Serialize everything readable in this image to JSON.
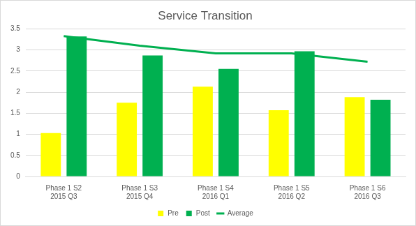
{
  "chart_data": {
    "type": "bar",
    "title": "Service Transition",
    "categories": [
      [
        "Phase 1 S2",
        "2015 Q3"
      ],
      [
        "Phase 1 S3",
        "2015 Q4"
      ],
      [
        "Phase 1 S4",
        "2016 Q1"
      ],
      [
        "Phase 1 S5",
        "2016 Q2"
      ],
      [
        "Phase 1 S6",
        "2016 Q3"
      ]
    ],
    "series": [
      {
        "name": "Pre",
        "color": "#ffff00",
        "values": [
          1.03,
          1.75,
          2.13,
          1.57,
          1.88
        ]
      },
      {
        "name": "Post",
        "color": "#00b050",
        "values": [
          3.32,
          2.87,
          2.55,
          2.97,
          1.82
        ]
      },
      {
        "name": "Average",
        "type": "line",
        "color": "#00b050",
        "values": [
          3.33,
          3.1,
          2.92,
          2.92,
          2.72
        ]
      }
    ],
    "ylim": [
      0,
      3.5
    ],
    "yticks": [
      0,
      0.5,
      1,
      1.5,
      2,
      2.5,
      3,
      3.5
    ],
    "grid": true,
    "legend": "bottom"
  }
}
